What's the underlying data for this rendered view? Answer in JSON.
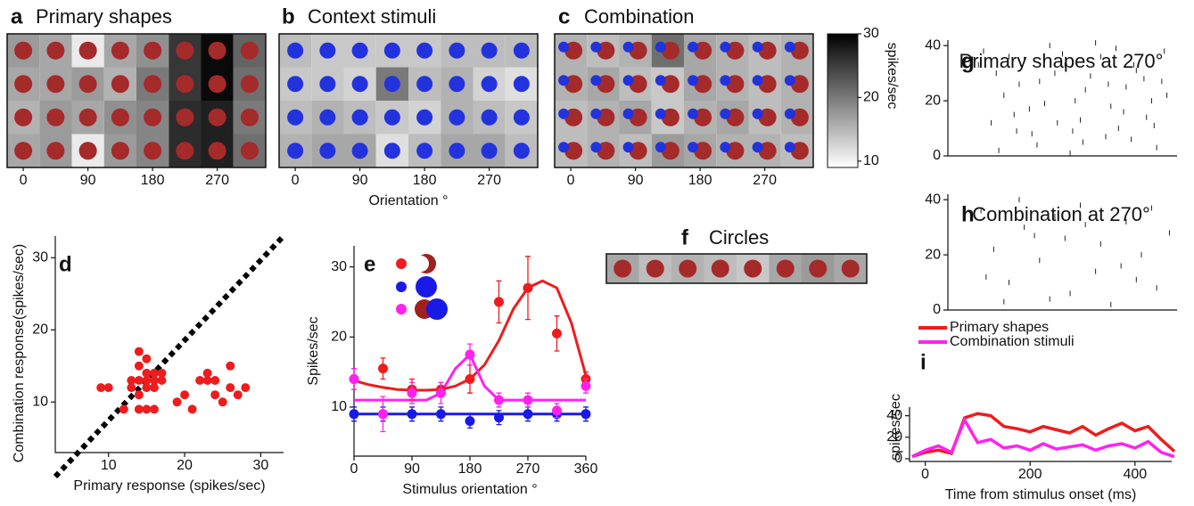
{
  "chart_data": [
    {
      "type": "heatmap",
      "panel": "a",
      "title": "Primary shapes",
      "x": [
        0,
        45,
        90,
        135,
        180,
        225,
        270,
        315
      ],
      "xticks": [
        0,
        90,
        180,
        270
      ],
      "values": [
        [
          17,
          16,
          10,
          16,
          18,
          26,
          30,
          22
        ],
        [
          16,
          16,
          17,
          15,
          20,
          26,
          30,
          21
        ],
        [
          15,
          17,
          16,
          18,
          19,
          27,
          28,
          20
        ],
        [
          16,
          17,
          10,
          17,
          19,
          27,
          28,
          21
        ]
      ]
    },
    {
      "type": "heatmap",
      "panel": "b",
      "title": "Context stimuli",
      "x": [
        0,
        45,
        90,
        135,
        180,
        225,
        270,
        315
      ],
      "xticks": [
        0,
        90,
        180,
        270
      ],
      "xlabel": "Orientation °",
      "values": [
        [
          14,
          13,
          13,
          13,
          13,
          14,
          14,
          14
        ],
        [
          13,
          13,
          12,
          20,
          14,
          15,
          12,
          11
        ],
        [
          14,
          15,
          14,
          13,
          12,
          15,
          14,
          13
        ],
        [
          15,
          16,
          16,
          11,
          14,
          16,
          16,
          14
        ]
      ]
    },
    {
      "type": "heatmap",
      "panel": "c",
      "title": "Combination",
      "x": [
        0,
        45,
        90,
        135,
        180,
        225,
        270,
        315
      ],
      "xticks": [
        0,
        90,
        180,
        270
      ],
      "values": [
        [
          15,
          14,
          15,
          21,
          16,
          15,
          14,
          15
        ],
        [
          15,
          16,
          14,
          13,
          16,
          15,
          14,
          15
        ],
        [
          14,
          15,
          16,
          13,
          15,
          16,
          14,
          15
        ],
        [
          14,
          15,
          14,
          17,
          16,
          15,
          15,
          14
        ]
      ],
      "colorbar": {
        "label": "spikes/sec",
        "lim": [
          9,
          30
        ],
        "ticks": [
          10,
          20,
          30
        ]
      }
    },
    {
      "type": "scatter",
      "panel": "d",
      "xlabel": "Primary response (spikes/sec)",
      "ylabel": "Combination response(spikes/sec)",
      "color": "#ee1c1c",
      "xlim": [
        3,
        33
      ],
      "ylim": [
        3,
        33
      ],
      "xticks": [
        10,
        20,
        30
      ],
      "yticks": [
        10,
        20,
        30
      ],
      "x": [
        9,
        10,
        12,
        13,
        13,
        14,
        14,
        14,
        15,
        15,
        15,
        14,
        15,
        14,
        16,
        16,
        17,
        17,
        15,
        16,
        19,
        20,
        21,
        22,
        23,
        23,
        24,
        24,
        25,
        26,
        27,
        28,
        26,
        16
      ],
      "y": [
        12,
        12,
        9,
        13,
        12,
        13,
        15,
        17,
        14,
        13,
        12,
        11,
        9,
        9,
        13,
        14,
        13,
        14,
        16,
        12,
        10,
        11,
        9,
        13,
        13,
        14,
        13,
        11,
        10,
        15,
        11,
        12,
        12,
        9
      ]
    },
    {
      "type": "line",
      "panel": "e",
      "xlabel": "Stimulus orientation °",
      "ylabel": "Spikes/sec",
      "xlim": [
        0,
        360
      ],
      "ylim": [
        3,
        33
      ],
      "xticks": [
        0,
        90,
        180,
        270,
        360
      ],
      "yticks": [
        10,
        20,
        30
      ],
      "x": [
        0,
        45,
        90,
        135,
        180,
        225,
        270,
        315,
        360
      ],
      "series": [
        {
          "color": "#ee1c1c",
          "values": [
            14,
            15.5,
            12.5,
            12.5,
            14,
            25,
            27,
            20.5,
            14
          ],
          "errors": [
            1.5,
            1.5,
            1.5,
            1,
            2,
            3,
            4.5,
            2.5,
            1
          ]
        },
        {
          "color": "#1a1ae6",
          "values": [
            9,
            9,
            9,
            9,
            8,
            8.5,
            9,
            9,
            9
          ],
          "errors": [
            1,
            1,
            1,
            1,
            1,
            1,
            1,
            1,
            1
          ]
        },
        {
          "color": "#ff22ee",
          "values": [
            14,
            9,
            12,
            12,
            17.5,
            11,
            11,
            9.5,
            13
          ],
          "errors": [
            1.5,
            2.5,
            1.5,
            1.5,
            1.5,
            1,
            1,
            1,
            1
          ]
        }
      ],
      "fit_x": [
        0,
        22.5,
        45,
        67.5,
        90,
        112.5,
        135,
        157.5,
        180,
        202.5,
        225,
        247.5,
        270,
        292.5,
        315,
        337.5,
        360
      ],
      "fits": [
        {
          "color": "#ee1c1c",
          "values": [
            13.8,
            13.2,
            12.8,
            12.5,
            12.4,
            12.4,
            12.5,
            13,
            14,
            16,
            19.5,
            24,
            27,
            28,
            27,
            22,
            14.5
          ]
        },
        {
          "color": "#1a1ae6",
          "values": [
            9,
            9,
            9,
            9,
            9,
            9,
            9,
            9,
            9,
            9,
            9,
            9,
            9,
            9,
            9,
            9,
            9
          ]
        },
        {
          "color": "#ff22ee",
          "values": [
            11,
            11,
            11,
            11,
            11,
            11,
            12,
            15.5,
            17.5,
            13,
            11,
            11,
            11,
            11,
            11,
            11,
            11
          ]
        }
      ]
    },
    {
      "type": "heatmap",
      "panel": "f",
      "title": "Circles",
      "x": [
        0,
        45,
        90,
        135,
        180,
        225,
        270,
        315
      ],
      "values": [
        [
          16,
          14,
          15,
          14,
          13,
          16,
          17,
          16
        ]
      ]
    },
    {
      "type": "raster",
      "panel": "g",
      "title": "Primary shapes at 270°",
      "xlim": [
        0,
        450
      ],
      "ylim": [
        0,
        42
      ],
      "yticks": [
        0,
        20,
        40
      ],
      "x": [
        70,
        95,
        110,
        130,
        150,
        165,
        180,
        200,
        215,
        230,
        250,
        265,
        280,
        300,
        320,
        335,
        350,
        370,
        390,
        410,
        430,
        85,
        120,
        140,
        175,
        190,
        225,
        245,
        270,
        290,
        310,
        345,
        365,
        385,
        405,
        425,
        100,
        160,
        210,
        260,
        315,
        360,
        400,
        60,
        135,
        240,
        330,
        420
      ],
      "y": [
        38,
        30,
        22,
        15,
        35,
        8,
        27,
        40,
        12,
        33,
        20,
        5,
        29,
        36,
        18,
        10,
        25,
        31,
        14,
        3,
        22,
        12,
        36,
        26,
        4,
        19,
        37,
        9,
        24,
        41,
        7,
        16,
        33,
        28,
        11,
        38,
        2,
        17,
        30,
        13,
        26,
        6,
        20,
        33,
        9,
        1,
        39,
        27
      ]
    },
    {
      "type": "raster",
      "panel": "h",
      "title": "Combination at 270°",
      "xlim": [
        0,
        450
      ],
      "ylim": [
        0,
        42
      ],
      "yticks": [
        0,
        20,
        40
      ],
      "x": [
        65,
        90,
        120,
        150,
        180,
        200,
        230,
        260,
        290,
        320,
        350,
        380,
        410,
        435,
        75,
        140,
        210,
        240,
        300,
        340,
        400,
        110,
        170,
        270,
        370
      ],
      "y": [
        36,
        22,
        10,
        30,
        18,
        4,
        26,
        38,
        14,
        2,
        32,
        20,
        8,
        28,
        12,
        40,
        34,
        6,
        24,
        16,
        37,
        3,
        27,
        31,
        11
      ]
    },
    {
      "type": "line",
      "panel": "i",
      "xlabel": "Time from stimulus onset (ms)",
      "ylabel": "spikes/sec",
      "xlim": [
        -30,
        470
      ],
      "ylim": [
        -2.5,
        48
      ],
      "xticks": [
        0,
        200,
        400
      ],
      "yticks": [
        0,
        20,
        40
      ],
      "x": [
        -25,
        0,
        25,
        50,
        75,
        100,
        125,
        150,
        175,
        200,
        225,
        250,
        275,
        300,
        325,
        350,
        375,
        400,
        425,
        450,
        475
      ],
      "series": [
        {
          "name": "Primary shapes",
          "color": "#ee1c1c",
          "values": [
            2,
            6,
            8,
            5,
            38,
            42,
            40,
            30,
            28,
            25,
            30,
            27,
            24,
            30,
            22,
            28,
            33,
            26,
            30,
            18,
            7
          ]
        },
        {
          "name": "Combination stimuli",
          "color": "#ff22ee",
          "values": [
            2,
            8,
            12,
            6,
            36,
            15,
            18,
            10,
            12,
            8,
            14,
            9,
            11,
            13,
            8,
            12,
            14,
            10,
            16,
            6,
            2
          ]
        }
      ]
    }
  ]
}
